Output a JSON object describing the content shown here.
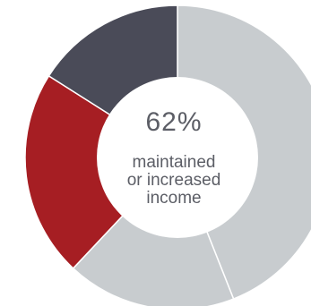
{
  "chart_data": {
    "type": "donut",
    "title": "",
    "series": [
      {
        "values": [
          {
            "value": 44,
            "color": "#c8cccf"
          },
          {
            "value": 18,
            "color": "#c8cccf"
          },
          {
            "value": 22,
            "color": "#a61e23"
          },
          {
            "value": 16,
            "color": "#4a4b58"
          }
        ]
      }
    ],
    "center_label": {
      "value": "62%",
      "caption_lines": [
        "maintained",
        "or increased",
        "income"
      ]
    }
  }
}
